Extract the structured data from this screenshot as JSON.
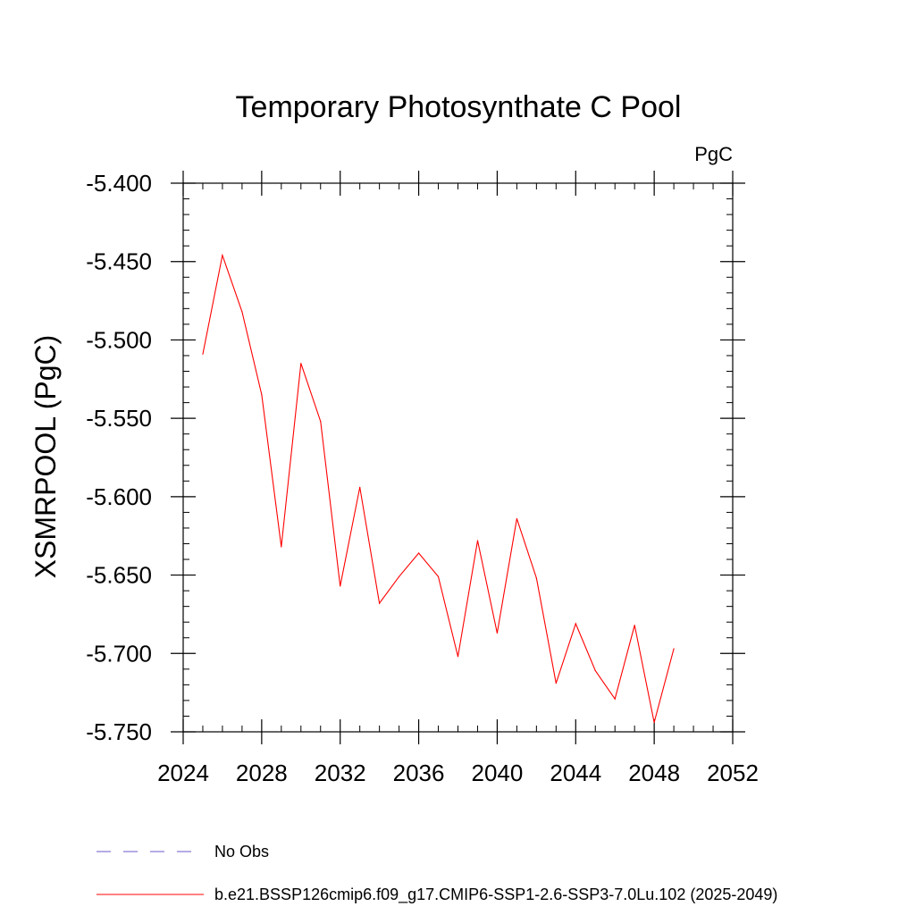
{
  "chart_data": {
    "type": "line",
    "title": "Temporary Photosynthate C Pool",
    "units_label": "PgC",
    "ylabel": "XSMRPOOL  (PgC)",
    "xlabel": "",
    "xlim": [
      2024,
      2052
    ],
    "ylim": [
      -5.75,
      -5.4
    ],
    "x_ticks": [
      2024,
      2028,
      2032,
      2036,
      2040,
      2044,
      2048,
      2052
    ],
    "x_tick_labels": [
      "2024",
      "2028",
      "2032",
      "2036",
      "2040",
      "2044",
      "2048",
      "2052"
    ],
    "y_ticks": [
      -5.4,
      -5.45,
      -5.5,
      -5.55,
      -5.6,
      -5.65,
      -5.7,
      -5.75
    ],
    "y_tick_labels": [
      "-5.400",
      "-5.450",
      "-5.500",
      "-5.550",
      "-5.600",
      "-5.650",
      "-5.700",
      "-5.750"
    ],
    "grid": false,
    "legend_position": "bottom",
    "series": [
      {
        "name": "b.e21.BSSP126cmip6.f09_g17.CMIP6-SSP1-2.6-SSP3-7.0Lu.102 (2025-2049)",
        "color": "#ff0000",
        "style": "solid",
        "x": [
          2025,
          2026,
          2027,
          2028,
          2029,
          2030,
          2031,
          2032,
          2033,
          2034,
          2035,
          2036,
          2037,
          2038,
          2039,
          2040,
          2041,
          2042,
          2043,
          2044,
          2045,
          2046,
          2047,
          2048,
          2049
        ],
        "values": [
          -5.509,
          -5.446,
          -5.482,
          -5.535,
          -5.632,
          -5.515,
          -5.552,
          -5.657,
          -5.594,
          -5.668,
          -5.651,
          -5.636,
          -5.651,
          -5.702,
          -5.628,
          -5.687,
          -5.614,
          -5.652,
          -5.719,
          -5.681,
          -5.711,
          -5.729,
          -5.682,
          -5.744,
          -5.697
        ]
      }
    ],
    "legend": [
      {
        "label": "No Obs",
        "color": "#6a5acd",
        "style": "dashed"
      },
      {
        "label": "b.e21.BSSP126cmip6.f09_g17.CMIP6-SSP1-2.6-SSP3-7.0Lu.102 (2025-2049)",
        "color": "#ff0000",
        "style": "solid"
      }
    ]
  }
}
